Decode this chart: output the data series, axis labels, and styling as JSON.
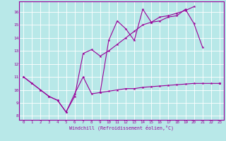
{
  "background_color": "#b8e8e8",
  "grid_color": "#ffffff",
  "line_color": "#990099",
  "xlabel": "Windchill (Refroidissement éolien,°C)",
  "xlim": [
    -0.5,
    23.5
  ],
  "ylim": [
    7.7,
    16.8
  ],
  "xticks": [
    0,
    1,
    2,
    3,
    4,
    5,
    6,
    7,
    8,
    9,
    10,
    11,
    12,
    13,
    14,
    15,
    16,
    17,
    18,
    19,
    20,
    21,
    22,
    23
  ],
  "yticks": [
    8,
    9,
    10,
    11,
    12,
    13,
    14,
    15,
    16
  ],
  "x": [
    0,
    1,
    2,
    3,
    4,
    5,
    6,
    7,
    8,
    9,
    10,
    11,
    12,
    13,
    14,
    15,
    16,
    17,
    18,
    19,
    20,
    21,
    22,
    23
  ],
  "line1": [
    11.0,
    10.5,
    10.0,
    9.5,
    9.2,
    8.3,
    9.7,
    11.0,
    9.7,
    9.8,
    13.8,
    15.3,
    14.7,
    13.8,
    16.2,
    15.2,
    15.3,
    15.6,
    15.7,
    16.2,
    15.1,
    13.3,
    null,
    10.5
  ],
  "line2": [
    11.0,
    10.5,
    10.0,
    9.5,
    9.2,
    8.3,
    9.5,
    12.8,
    13.1,
    12.6,
    13.0,
    13.5,
    14.0,
    14.5,
    15.0,
    15.2,
    15.6,
    15.7,
    15.9,
    16.1,
    16.4,
    null,
    null,
    10.5
  ],
  "line3": [
    null,
    null,
    null,
    null,
    null,
    null,
    null,
    null,
    null,
    9.8,
    9.9,
    10.0,
    10.1,
    10.1,
    10.2,
    10.25,
    10.3,
    10.35,
    10.4,
    10.45,
    10.5,
    10.5,
    10.5,
    10.5
  ]
}
